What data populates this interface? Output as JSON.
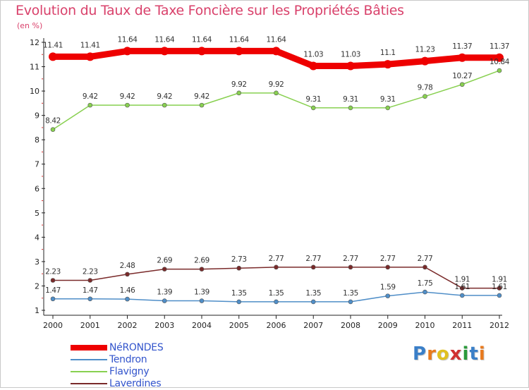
{
  "chart_data": {
    "type": "line",
    "title": "Evolution du Taux de Taxe Foncière sur les Propriétés Bâties",
    "ylabel": "(en %)",
    "xlabel": "",
    "x": [
      "2000",
      "2001",
      "2002",
      "2003",
      "2004",
      "2005",
      "2006",
      "2007",
      "2008",
      "2009",
      "2010",
      "2011",
      "2012"
    ],
    "ylim": [
      1,
      12
    ],
    "yticks": [
      1,
      2,
      3,
      4,
      5,
      6,
      7,
      8,
      9,
      10,
      11,
      12
    ],
    "series": [
      {
        "name": "NéRONDES",
        "color": "#ee0000",
        "width": 9,
        "values": [
          11.41,
          11.41,
          11.64,
          11.64,
          11.64,
          11.64,
          11.64,
          11.03,
          11.03,
          11.1,
          11.23,
          11.37,
          11.37
        ],
        "labels": [
          "11.41",
          "11.41",
          "11.64",
          "11.64",
          "11.64",
          "11.64",
          "11.64",
          "11.03",
          "11.03",
          "11.1",
          "11.23",
          "11.37",
          "11.37"
        ]
      },
      {
        "name": "Tendron",
        "color": "#4f8ec8",
        "width": 1.5,
        "values": [
          1.47,
          1.47,
          1.46,
          1.39,
          1.39,
          1.35,
          1.35,
          1.35,
          1.35,
          1.59,
          1.75,
          1.61,
          1.61
        ],
        "labels": [
          "1.47",
          "1.47",
          "1.46",
          "1.39",
          "1.39",
          "1.35",
          "1.35",
          "1.35",
          "1.35",
          "1.59",
          "1.75",
          "1.61",
          "1.61"
        ]
      },
      {
        "name": "Flavigny",
        "color": "#88d050",
        "width": 1.5,
        "values": [
          8.42,
          9.42,
          9.42,
          9.42,
          9.42,
          9.92,
          9.92,
          9.31,
          9.31,
          9.31,
          9.78,
          10.27,
          10.84
        ],
        "labels": [
          "8.42",
          "9.42",
          "9.42",
          "9.42",
          "9.42",
          "9.92",
          "9.92",
          "9.31",
          "9.31",
          "9.31",
          "9.78",
          "10.27",
          "10.84"
        ]
      },
      {
        "name": "Laverdines",
        "color": "#7a2a2a",
        "width": 1.5,
        "values": [
          2.23,
          2.23,
          2.48,
          2.69,
          2.69,
          2.73,
          2.77,
          2.77,
          2.77,
          2.77,
          2.77,
          1.91,
          1.91
        ],
        "labels": [
          "2.23",
          "2.23",
          "2.48",
          "2.69",
          "2.69",
          "2.73",
          "2.77",
          "2.77",
          "2.77",
          "2.77",
          "2.77",
          "1.91",
          "1.91"
        ]
      }
    ],
    "legend": "bottom-left"
  },
  "logo": {
    "text": [
      "P",
      "r",
      "o",
      "x",
      "i",
      "t",
      "i"
    ],
    "colors": [
      "#3a7fc8",
      "#e87a1e",
      "#e0c020",
      "#d03030",
      "#2a9a3a",
      "#3a7fc8",
      "#e87a1e"
    ]
  }
}
